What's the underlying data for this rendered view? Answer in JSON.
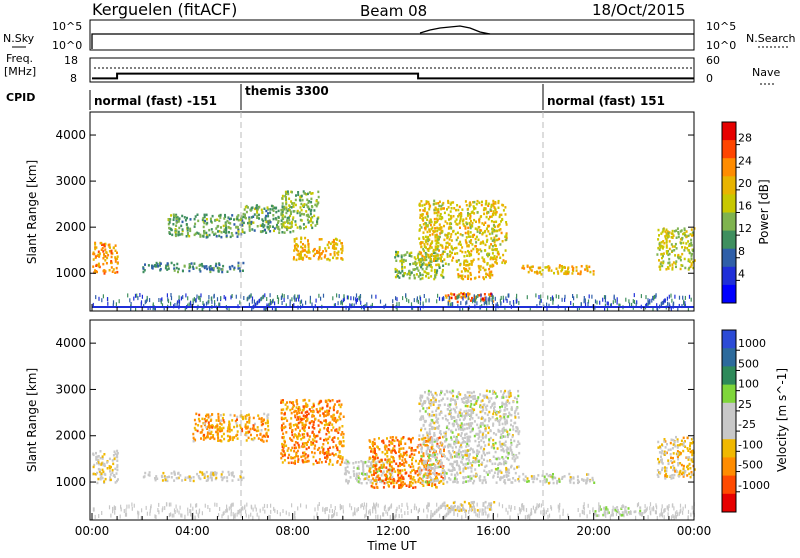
{
  "header": {
    "station": "Kerguelen (fitACF)",
    "beam": "Beam 08",
    "date": "18/Oct/2015"
  },
  "noise_panel": {
    "left_label": "N.Sky",
    "right_label": "N.Search",
    "ticks": [
      "10^5",
      "10^0"
    ]
  },
  "freq_panel": {
    "label_line1": "Freq.",
    "label_line2": "[MHz]",
    "left_ticks": [
      "18",
      "8"
    ],
    "right_ticks": [
      "60",
      "0"
    ],
    "right_label": "Nave",
    "frequency_mhz": [
      {
        "from": "00:00",
        "to": "01:00",
        "value": 9.5
      },
      {
        "from": "01:00",
        "to": "13:00",
        "value": 11.5
      },
      {
        "from": "13:00",
        "to": "24:00",
        "value": 9.5
      }
    ]
  },
  "cpid_panel": {
    "label": "CPID",
    "segments": [
      {
        "from": "00:00",
        "to": "06:00",
        "label": "normal (fast) -151"
      },
      {
        "from": "06:00",
        "to": "18:00",
        "label": "themis 3300"
      },
      {
        "from": "18:00",
        "to": "24:00",
        "label": "normal (fast) 151"
      }
    ]
  },
  "power_panel": {
    "ylabel": "Slant Range [km]",
    "colorbar_label": "Power [dB]",
    "colorbar_ticks": [
      "28",
      "24",
      "20",
      "16",
      "12",
      "8",
      "4"
    ],
    "colors": [
      "#e60000",
      "#ff4500",
      "#ff8c00",
      "#e8b400",
      "#c8c800",
      "#7fb34f",
      "#3f8f5f",
      "#2f5fa8",
      "#1f2fd8",
      "#0000ff"
    ]
  },
  "velocity_panel": {
    "ylabel": "Slant Range [km]",
    "colorbar_label": "Velocity [m s^-1]",
    "colorbar_ticks": [
      "1000",
      "500",
      "100",
      "25",
      "-25",
      "-100",
      "-500",
      "-1000"
    ],
    "colors": [
      "#2c4bd6",
      "#2c6a9c",
      "#2e8a5a",
      "#7fd63a",
      "#c8c8c8",
      "#c8c8c8",
      "#f0b800",
      "#ff8c00",
      "#ff4a00",
      "#e60000"
    ]
  },
  "axes": {
    "y_ticks": [
      "4000",
      "3000",
      "2000",
      "1000"
    ],
    "x_ticks": [
      "00:00",
      "04:00",
      "08:00",
      "12:00",
      "16:00",
      "20:00",
      "00:00"
    ],
    "xlabel": "Time UT"
  },
  "chart_data": [
    {
      "type": "heatmap",
      "quantity": "Power",
      "units": "dB",
      "xlabel": "Time UT",
      "ylabel": "Slant Range [km]",
      "xlim": [
        "00:00",
        "24:00"
      ],
      "ylim": [
        180,
        4500
      ],
      "color_range": [
        0,
        30
      ],
      "echo_regions": [
        {
          "time": [
            "00:00",
            "01:00"
          ],
          "range_km": [
            1000,
            1700
          ],
          "value": 22
        },
        {
          "time": [
            "02:00",
            "06:00"
          ],
          "range_km": [
            1050,
            1250
          ],
          "value": 10
        },
        {
          "time": [
            "03:00",
            "06:00"
          ],
          "range_km": [
            1800,
            2300
          ],
          "value": 12
        },
        {
          "time": [
            "06:00",
            "08:00"
          ],
          "range_km": [
            1900,
            2500
          ],
          "value": 12
        },
        {
          "time": [
            "07:30",
            "09:00"
          ],
          "range_km": [
            2000,
            2800
          ],
          "value": 14
        },
        {
          "time": [
            "08:00",
            "10:00"
          ],
          "range_km": [
            1300,
            1800
          ],
          "value": 20
        },
        {
          "time": [
            "12:00",
            "14:00"
          ],
          "range_km": [
            900,
            1500
          ],
          "value": 14
        },
        {
          "time": [
            "13:00",
            "16:30"
          ],
          "range_km": [
            1200,
            2600
          ],
          "value": 18
        },
        {
          "time": [
            "14:30",
            "16:00"
          ],
          "range_km": [
            900,
            1200
          ],
          "value": 20
        },
        {
          "time": [
            "14:00",
            "16:00"
          ],
          "range_km": [
            400,
            600
          ],
          "value": 24
        },
        {
          "time": [
            "17:00",
            "20:00"
          ],
          "range_km": [
            1000,
            1200
          ],
          "value": 20
        },
        {
          "time": [
            "22:30",
            "24:00"
          ],
          "range_km": [
            1100,
            2000
          ],
          "value": 16
        }
      ]
    },
    {
      "type": "heatmap",
      "quantity": "Velocity",
      "units": "m s^-1",
      "xlabel": "Time UT",
      "ylabel": "Slant Range [km]",
      "xlim": [
        "00:00",
        "24:00"
      ],
      "ylim": [
        180,
        4500
      ],
      "color_range": [
        -1000,
        1000
      ],
      "echo_regions": [
        {
          "time": [
            "00:00",
            "01:00"
          ],
          "range_km": [
            1000,
            1700
          ],
          "value": -100
        },
        {
          "time": [
            "02:00",
            "06:00"
          ],
          "range_km": [
            1050,
            1250
          ],
          "value": -50
        },
        {
          "time": [
            "04:00",
            "07:00"
          ],
          "range_km": [
            1900,
            2500
          ],
          "value": -400
        },
        {
          "time": [
            "07:30",
            "10:00"
          ],
          "range_km": [
            1400,
            2800
          ],
          "value": -500
        },
        {
          "time": [
            "10:00",
            "12:00"
          ],
          "range_km": [
            1000,
            1500
          ],
          "value": 0
        },
        {
          "time": [
            "11:00",
            "14:00"
          ],
          "range_km": [
            900,
            2000
          ],
          "value": -500
        },
        {
          "time": [
            "13:00",
            "17:00"
          ],
          "range_km": [
            1000,
            3000
          ],
          "value": 0
        },
        {
          "time": [
            "14:00",
            "16:00"
          ],
          "range_km": [
            400,
            600
          ],
          "value": -150
        },
        {
          "time": [
            "17:00",
            "20:00"
          ],
          "range_km": [
            1000,
            1200
          ],
          "value": 0
        },
        {
          "time": [
            "20:00",
            "22:00"
          ],
          "range_km": [
            300,
            500
          ],
          "value": 100
        },
        {
          "time": [
            "22:30",
            "24:00"
          ],
          "range_km": [
            1100,
            2000
          ],
          "value": -200
        }
      ]
    }
  ]
}
